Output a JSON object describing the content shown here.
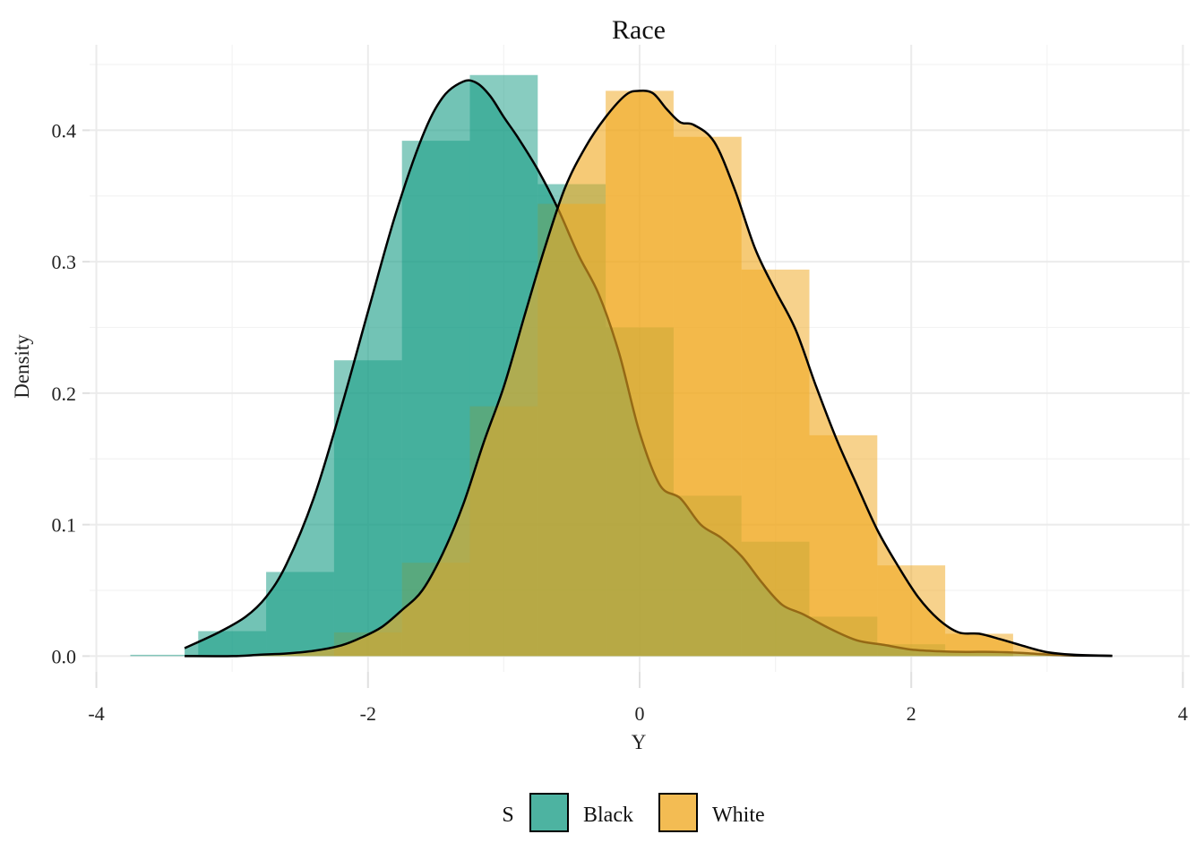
{
  "chart_data": {
    "type": "histogram_density",
    "title": "Race",
    "xlabel": "Y",
    "ylabel": "Density",
    "xlim": [
      -4.05,
      4.05
    ],
    "ylim": [
      -0.012,
      0.465
    ],
    "x_ticks": [
      -4,
      -2,
      0,
      2,
      4
    ],
    "x_tick_labels": [
      "-4",
      "-2",
      "0",
      "2",
      "4"
    ],
    "y_ticks": [
      0.0,
      0.1,
      0.2,
      0.3,
      0.4
    ],
    "y_tick_labels": [
      "0.0",
      "0.1",
      "0.2",
      "0.3",
      "0.4"
    ],
    "grid": true,
    "legend": {
      "title": "S",
      "position": "bottom"
    },
    "bin_width": 0.5,
    "series": [
      {
        "name": "Black",
        "color": "#1b9e87",
        "bins": [
          {
            "x0": -3.75,
            "x1": -3.25,
            "density": 0.001
          },
          {
            "x0": -3.25,
            "x1": -2.75,
            "density": 0.019
          },
          {
            "x0": -2.75,
            "x1": -2.25,
            "density": 0.064
          },
          {
            "x0": -2.25,
            "x1": -1.75,
            "density": 0.225
          },
          {
            "x0": -1.75,
            "x1": -1.25,
            "density": 0.392
          },
          {
            "x0": -1.25,
            "x1": -0.75,
            "density": 0.442
          },
          {
            "x0": -0.75,
            "x1": -0.25,
            "density": 0.359
          },
          {
            "x0": -0.25,
            "x1": 0.25,
            "density": 0.25
          },
          {
            "x0": 0.25,
            "x1": 0.75,
            "density": 0.122
          },
          {
            "x0": 0.75,
            "x1": 1.25,
            "density": 0.087
          },
          {
            "x0": 1.25,
            "x1": 1.75,
            "density": 0.03
          },
          {
            "x0": 1.75,
            "x1": 2.25,
            "density": 0.009
          },
          {
            "x0": 2.25,
            "x1": 2.75,
            "density": 0.003
          }
        ],
        "density_curve": {
          "x": [
            -3.35,
            -3.1,
            -2.9,
            -2.75,
            -2.6,
            -2.4,
            -2.2,
            -2.0,
            -1.8,
            -1.6,
            -1.45,
            -1.3,
            -1.2,
            -1.1,
            -1.0,
            -0.9,
            -0.75,
            -0.6,
            -0.45,
            -0.3,
            -0.15,
            0.0,
            0.15,
            0.3,
            0.45,
            0.6,
            0.75,
            0.9,
            1.05,
            1.2,
            1.4,
            1.6,
            1.8,
            2.0,
            2.2,
            2.4,
            2.6,
            2.8,
            3.0,
            3.2,
            3.48
          ],
          "y": [
            0.006,
            0.018,
            0.03,
            0.045,
            0.07,
            0.12,
            0.188,
            0.262,
            0.335,
            0.395,
            0.425,
            0.437,
            0.436,
            0.426,
            0.41,
            0.395,
            0.37,
            0.34,
            0.305,
            0.275,
            0.23,
            0.17,
            0.13,
            0.12,
            0.1,
            0.09,
            0.076,
            0.056,
            0.039,
            0.032,
            0.021,
            0.012,
            0.0085,
            0.005,
            0.0037,
            0.0032,
            0.0032,
            0.0025,
            0.0012,
            0.0005,
            0.0002
          ]
        }
      },
      {
        "name": "White",
        "color": "#f0a922",
        "bins": [
          {
            "x0": -2.25,
            "x1": -1.75,
            "density": 0.018
          },
          {
            "x0": -1.75,
            "x1": -1.25,
            "density": 0.071
          },
          {
            "x0": -1.25,
            "x1": -0.75,
            "density": 0.19
          },
          {
            "x0": -0.75,
            "x1": -0.25,
            "density": 0.344
          },
          {
            "x0": -0.25,
            "x1": 0.25,
            "density": 0.43
          },
          {
            "x0": 0.25,
            "x1": 0.75,
            "density": 0.395
          },
          {
            "x0": 0.75,
            "x1": 1.25,
            "density": 0.294
          },
          {
            "x0": 1.25,
            "x1": 1.75,
            "density": 0.168
          },
          {
            "x0": 1.75,
            "x1": 2.25,
            "density": 0.069
          },
          {
            "x0": 2.25,
            "x1": 2.75,
            "density": 0.017
          }
        ],
        "density_curve": {
          "x": [
            -3.35,
            -3.0,
            -2.8,
            -2.6,
            -2.4,
            -2.2,
            -2.05,
            -1.9,
            -1.75,
            -1.6,
            -1.45,
            -1.3,
            -1.15,
            -1.0,
            -0.85,
            -0.7,
            -0.55,
            -0.4,
            -0.25,
            -0.1,
            0.0,
            0.1,
            0.2,
            0.3,
            0.4,
            0.55,
            0.7,
            0.85,
            1.0,
            1.15,
            1.3,
            1.45,
            1.6,
            1.75,
            1.9,
            2.05,
            2.2,
            2.35,
            2.5,
            2.65,
            2.8,
            3.0,
            3.2,
            3.48
          ],
          "y": [
            0.0,
            0.0,
            0.001,
            0.002,
            0.004,
            0.008,
            0.014,
            0.022,
            0.035,
            0.05,
            0.078,
            0.115,
            0.162,
            0.205,
            0.258,
            0.31,
            0.356,
            0.387,
            0.41,
            0.427,
            0.43,
            0.428,
            0.416,
            0.406,
            0.404,
            0.391,
            0.355,
            0.31,
            0.278,
            0.248,
            0.205,
            0.165,
            0.13,
            0.096,
            0.069,
            0.045,
            0.028,
            0.018,
            0.017,
            0.013,
            0.0085,
            0.003,
            0.001,
            0.0002
          ]
        }
      }
    ]
  }
}
